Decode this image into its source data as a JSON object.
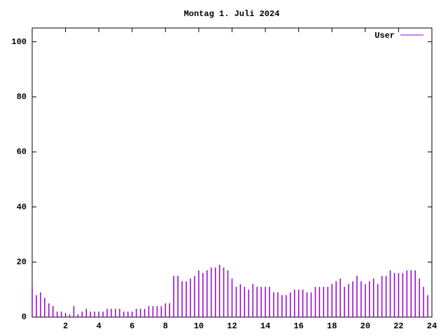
{
  "chart_data": {
    "type": "impulses",
    "title": "Montag 1. Juli 2024",
    "x": [
      0,
      0.25,
      0.5,
      0.75,
      1,
      1.25,
      1.5,
      1.75,
      2,
      2.25,
      2.5,
      2.75,
      3,
      3.25,
      3.5,
      3.75,
      4,
      4.25,
      4.5,
      4.75,
      5,
      5.25,
      5.5,
      5.75,
      6,
      6.25,
      6.5,
      6.75,
      7,
      7.25,
      7.5,
      7.75,
      8,
      8.25,
      8.5,
      8.75,
      9,
      9.25,
      9.5,
      9.75,
      10,
      10.25,
      10.5,
      10.75,
      11,
      11.25,
      11.5,
      11.75,
      12,
      12.25,
      12.5,
      12.75,
      13,
      13.25,
      13.5,
      13.75,
      14,
      14.25,
      14.5,
      14.75,
      15,
      15.25,
      15.5,
      15.75,
      16,
      16.25,
      16.5,
      16.75,
      17,
      17.25,
      17.5,
      17.75,
      18,
      18.25,
      18.5,
      18.75,
      19,
      19.25,
      19.5,
      19.75,
      20,
      20.25,
      20.5,
      20.75,
      21,
      21.25,
      21.5,
      21.75,
      22,
      22.25,
      22.5,
      22.75,
      23,
      23.25,
      23.5,
      23.75
    ],
    "series": [
      {
        "name": "User",
        "color": "#9400d3",
        "values": [
          11,
          8,
          9,
          7,
          5,
          4,
          2,
          2,
          1,
          1,
          4,
          1,
          2,
          3,
          2,
          2,
          2,
          2,
          3,
          3,
          3,
          3,
          2,
          2,
          2,
          3,
          3,
          3,
          4,
          4,
          4,
          4,
          5,
          5,
          15,
          15,
          13,
          13,
          14,
          15,
          17,
          16,
          17,
          18,
          18,
          19,
          18,
          17,
          14,
          11,
          12,
          11,
          10,
          12,
          11,
          11,
          11,
          11,
          9,
          9,
          8,
          8,
          9,
          10,
          10,
          10,
          9,
          9,
          11,
          11,
          11,
          11,
          12,
          13,
          14,
          11,
          12,
          13,
          15,
          13,
          12,
          13,
          14,
          12,
          15,
          15,
          17,
          16,
          16,
          16,
          17,
          17,
          17,
          14,
          11,
          8
        ]
      }
    ],
    "xlim": [
      0,
      24
    ],
    "xticks": [
      2,
      4,
      6,
      8,
      10,
      12,
      14,
      16,
      18,
      20,
      22,
      24
    ],
    "ylim": [
      0,
      105
    ],
    "yticks": [
      0,
      20,
      40,
      60,
      80,
      100
    ]
  }
}
